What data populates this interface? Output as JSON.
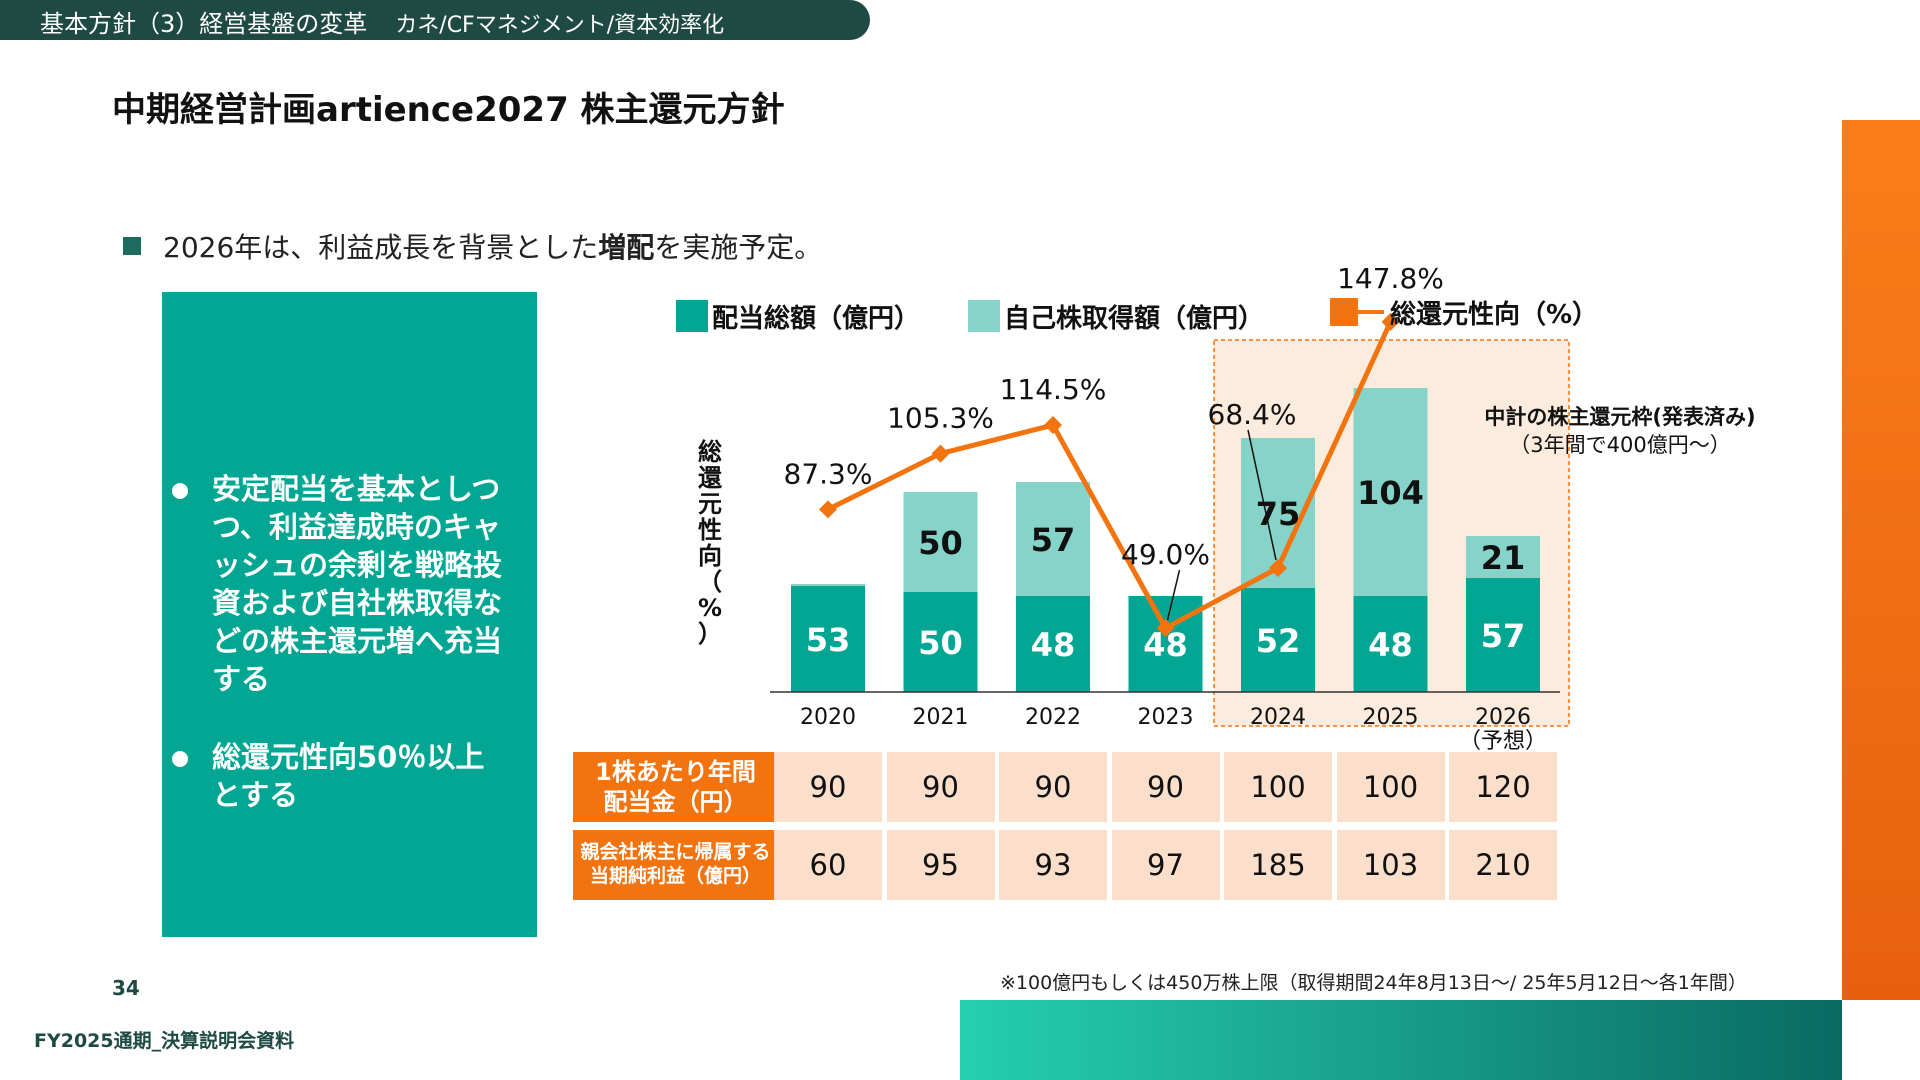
{
  "header": {
    "title": "基本方針（3）経営基盤の変革",
    "subtitle": "カネ/CFマネジメント/資本効率化"
  },
  "page_title": "中期経営計画artience2027 株主還元方針",
  "bullet": {
    "before": "2026年は、利益成長を背景とした",
    "bold": "増配",
    "after": "を実施予定。"
  },
  "panel": {
    "point1": "安定配当を基本としつつ、利益達成時のキャッシュの余剰を戦略投資および自社株取得などの株主還元増へ充当する",
    "point2": "総還元性向50％以上とする"
  },
  "chart_data": {
    "type": "bar",
    "categories": [
      "2020",
      "2021",
      "2022",
      "2023",
      "2024",
      "2025",
      "2026"
    ],
    "category_notes": [
      "",
      "",
      "",
      "",
      "",
      "",
      "（予想）"
    ],
    "series": [
      {
        "name": "配当総額（億円）",
        "type": "bar",
        "stack": "total",
        "color": "#02a693",
        "values": [
          53,
          50,
          48,
          48,
          52,
          48,
          57
        ]
      },
      {
        "name": "自己株取得額（億円）",
        "type": "bar",
        "stack": "total",
        "color": "#86d3c9",
        "values": [
          1,
          50,
          57,
          0,
          75,
          104,
          21
        ]
      },
      {
        "name": "総還元性向（%）",
        "type": "line",
        "color": "#f3730f",
        "values": [
          87.3,
          105.3,
          114.5,
          49.0,
          68.4,
          147.8,
          null
        ]
      }
    ],
    "bar_data_labels": [
      [
        "53",
        "50",
        "48",
        "48",
        "52",
        "48",
        "57"
      ],
      [
        "",
        "50",
        "57",
        "",
        "75",
        "104",
        "21"
      ]
    ],
    "line_data_labels": [
      "87.3%",
      "105.3%",
      "114.5%",
      "49.0%",
      "68.4%",
      "147.8%",
      ""
    ],
    "ylabel": "総還元性向（%）",
    "legend_position": "top",
    "highlight": {
      "categories": [
        "2024",
        "2025",
        "2026"
      ],
      "title": "中計の株主還元枠(発表済み)",
      "subtitle": "（3年間で400億円〜）"
    }
  },
  "table": {
    "rows": [
      {
        "label_line1": "1株あたり年間",
        "label_line2": "配当金（円）",
        "values": [
          "90",
          "90",
          "90",
          "90",
          "100",
          "100",
          "120"
        ]
      },
      {
        "label_line1": "親会社株主に帰属する",
        "label_line2": "当期純利益（億円）",
        "values": [
          "60",
          "95",
          "93",
          "97",
          "185",
          "103",
          "210"
        ]
      }
    ]
  },
  "footnote": "※100億円もしくは450万株上限（取得期間24年8月13日〜/ 25年5月12日〜各1年間）",
  "page_number": "34",
  "footer": "FY2025通期_決算説明会資料",
  "colors": {
    "header_bg": "#1e4a43",
    "panel_bg": "#02a693",
    "dividend": "#02a693",
    "buyback": "#86d3c9",
    "payout_line": "#f3730f",
    "highlight_fill": "#fcecdd",
    "table_head": "#f3730f",
    "table_cell": "#fbdfcb"
  }
}
